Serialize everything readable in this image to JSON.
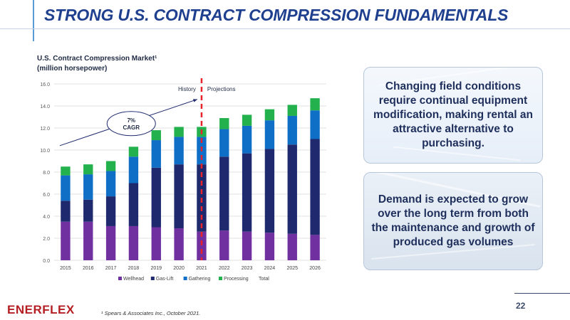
{
  "slide": {
    "title": "STRONG U.S. CONTRACT COMPRESSION FUNDAMENTALS",
    "chart_heading_line1": "U.S. Contract Compression Market¹",
    "chart_heading_line2": "(million horsepower)",
    "callout_1": "Changing field conditions require continual equipment modification, making rental an attractive alternative to purchasing.",
    "callout_2": "Demand is expected to grow over the long term from both the maintenance and growth of produced gas volumes",
    "page_number": "22",
    "logo_text": "ENERFLEX",
    "footnote": "¹ Spears & Associates Inc., October 2021.",
    "colors": {
      "title": "#1f3f8f",
      "logo": "#b51f24",
      "divider": "#e8232a"
    }
  },
  "chart_data": {
    "type": "bar",
    "stacked": true,
    "categories": [
      "2015",
      "2016",
      "2017",
      "2018",
      "2019",
      "2020",
      "2021",
      "2022",
      "2023",
      "2024",
      "2025",
      "2026"
    ],
    "series": [
      {
        "name": "Wellhead",
        "color": "#7030a0",
        "values": [
          3.5,
          3.5,
          3.1,
          3.1,
          3.0,
          2.9,
          2.6,
          2.7,
          2.6,
          2.5,
          2.4,
          2.3
        ]
      },
      {
        "name": "Gas-Lift",
        "color": "#1f2a6e",
        "values": [
          1.9,
          2.0,
          2.7,
          3.9,
          5.4,
          5.8,
          6.1,
          6.7,
          7.1,
          7.6,
          8.1,
          8.7
        ]
      },
      {
        "name": "Gathering",
        "color": "#0f6fc6",
        "values": [
          2.3,
          2.3,
          2.3,
          2.4,
          2.5,
          2.5,
          2.5,
          2.5,
          2.5,
          2.6,
          2.6,
          2.6
        ]
      },
      {
        "name": "Processing",
        "color": "#22b14c",
        "values": [
          0.8,
          0.9,
          0.9,
          0.9,
          0.9,
          0.9,
          0.9,
          1.0,
          1.0,
          1.0,
          1.0,
          1.1
        ]
      }
    ],
    "legend": [
      "Wellhead",
      "Gas-Lift",
      "Gathering",
      "Processing",
      "Total"
    ],
    "ylim": [
      0,
      16
    ],
    "yticks": [
      "0.0",
      "2.0",
      "4.0",
      "6.0",
      "8.0",
      "10.0",
      "12.0",
      "14.0",
      "16.0"
    ],
    "grid": true,
    "legend_position": "bottom",
    "divider_after": "2021",
    "annotations": {
      "history": "History",
      "projections": "Projections",
      "cagr": "7%\nCAGR"
    }
  }
}
